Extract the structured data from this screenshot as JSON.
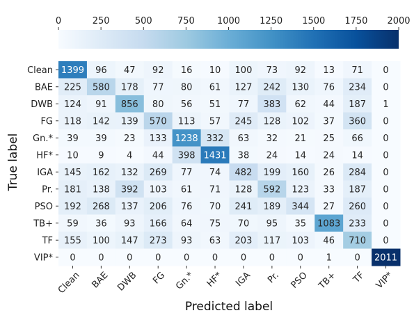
{
  "chart_data": {
    "type": "heatmap",
    "title": "",
    "xlabel": "Predicted label",
    "ylabel": "True label",
    "x_categories": [
      "Clean",
      "BAE",
      "DWB",
      "FG",
      "Gn.*",
      "HF*",
      "IGA",
      "Pr.",
      "PSO",
      "TB+",
      "TF",
      "VIP*"
    ],
    "y_categories": [
      "Clean",
      "BAE",
      "DWB",
      "FG",
      "Gn.*",
      "HF*",
      "IGA",
      "Pr.",
      "PSO",
      "TB+",
      "TF",
      "VIP*"
    ],
    "values": [
      [
        1399,
        96,
        47,
        92,
        16,
        10,
        100,
        73,
        92,
        13,
        71,
        0
      ],
      [
        225,
        580,
        178,
        77,
        80,
        61,
        127,
        242,
        130,
        76,
        234,
        0
      ],
      [
        124,
        91,
        856,
        80,
        56,
        51,
        77,
        383,
        62,
        44,
        187,
        1
      ],
      [
        118,
        142,
        139,
        570,
        113,
        57,
        245,
        128,
        102,
        37,
        360,
        0
      ],
      [
        39,
        39,
        23,
        133,
        1238,
        332,
        63,
        32,
        21,
        25,
        66,
        0
      ],
      [
        10,
        9,
        4,
        44,
        398,
        1431,
        38,
        24,
        14,
        24,
        14,
        0
      ],
      [
        145,
        162,
        132,
        269,
        77,
        74,
        482,
        199,
        160,
        26,
        284,
        0
      ],
      [
        181,
        138,
        392,
        103,
        61,
        71,
        128,
        592,
        123,
        33,
        187,
        0
      ],
      [
        192,
        268,
        137,
        206,
        76,
        70,
        241,
        189,
        344,
        27,
        260,
        0
      ],
      [
        59,
        36,
        93,
        166,
        64,
        75,
        70,
        95,
        35,
        1083,
        233,
        0
      ],
      [
        155,
        100,
        147,
        273,
        93,
        63,
        203,
        117,
        103,
        46,
        710,
        0
      ],
      [
        0,
        0,
        0,
        0,
        0,
        0,
        0,
        0,
        0,
        1,
        0,
        2011
      ]
    ],
    "colorbar": {
      "colormap": "Blues",
      "range": [
        0,
        2000
      ],
      "ticks": [
        0,
        250,
        500,
        750,
        1000,
        1250,
        1500,
        1750,
        2000
      ],
      "position": "top"
    }
  }
}
